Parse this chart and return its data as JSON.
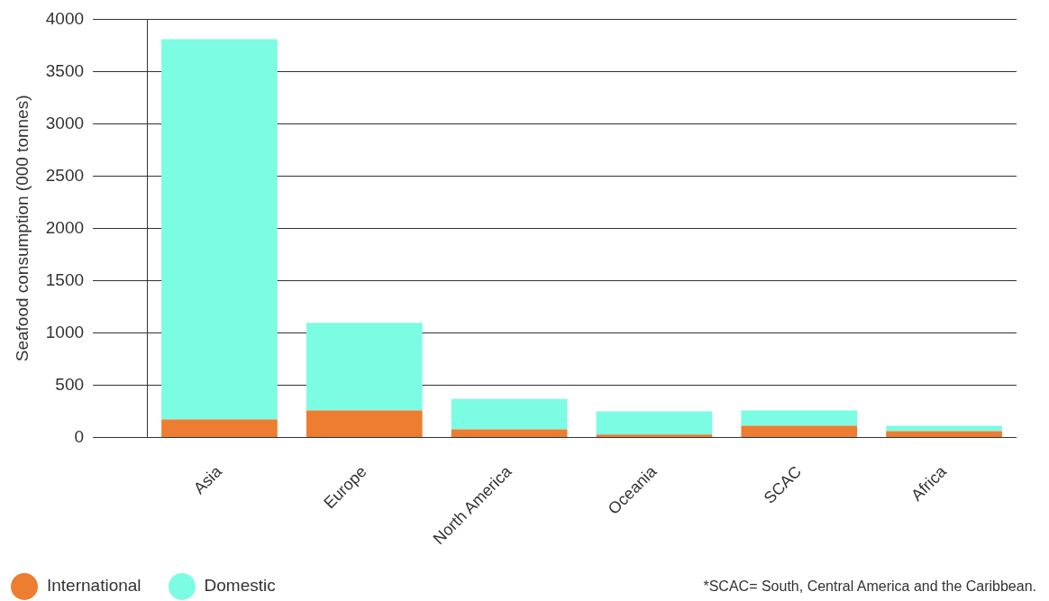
{
  "chart_data": {
    "type": "bar",
    "stacked": true,
    "ylabel": "Seafood consumption (000 tonnes)",
    "categories": [
      "Asia",
      "Europe",
      "North America",
      "Oceania",
      "SCAC",
      "Africa"
    ],
    "series": [
      {
        "name": "International",
        "color": "#ed7d31",
        "values": [
          171,
          257,
          77,
          26,
          111,
          60
        ]
      },
      {
        "name": "Domestic",
        "color": "#7cfce2",
        "values": [
          3639,
          839,
          291,
          222,
          146,
          51
        ]
      }
    ],
    "ylim": [
      0,
      4000
    ],
    "yticks": [
      0,
      500,
      1000,
      1500,
      2000,
      2500,
      3000,
      3500,
      4000
    ],
    "grid": "y",
    "legend": "bottom left",
    "annotations": [
      "*SCAC= South, Central America and the Caribbean."
    ]
  }
}
